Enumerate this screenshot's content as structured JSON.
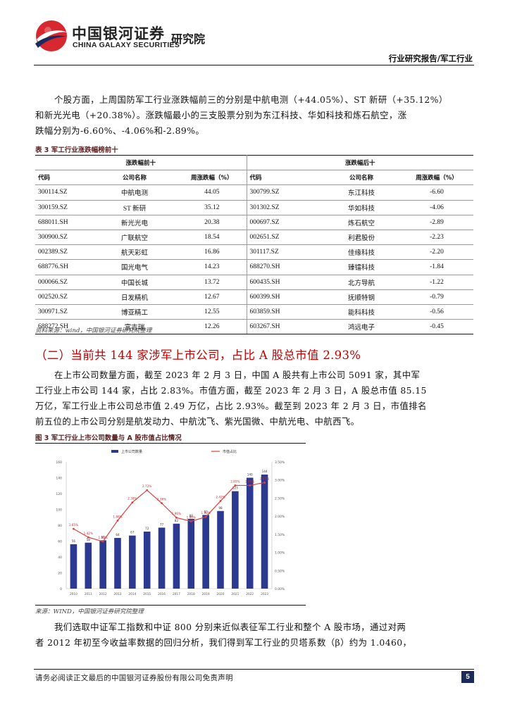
{
  "header": {
    "logo_cn": "中国银河证券",
    "logo_en": "CHINA GALAXY SECURITIES",
    "institute": "研究院",
    "report_type": "行业研究报告/军工行业",
    "colors": {
      "logo_red": "#d7282f",
      "logo_navy": "#1b2a5c"
    }
  },
  "para1": {
    "lines": [
      "个股方面，上周国防军工行业涨跌幅前三的分别是中航电测（+44.05%）、ST 新研（+35.12%）",
      "和新光光电（+20.38%）。涨跌幅最小的三支股票分别为东江科技、华如科技和炼石航空，涨",
      "跌幅分别为-6.60%、-4.06%和-2.89%。"
    ]
  },
  "table3": {
    "caption": "表 3  军工行业涨跌幅榜前十",
    "group_left": "涨跌幅前十",
    "group_right": "涨跌幅后十",
    "headers": [
      "代码",
      "公司名称",
      "周涨跌幅（%）",
      "代码",
      "公司名称",
      "周涨跌幅（%）"
    ],
    "rows": [
      [
        "300114.SZ",
        "中航电测",
        "44.05",
        "300799.SZ",
        "东江科技",
        "-6.60"
      ],
      [
        "300159.SZ",
        "ST 新研",
        "35.12",
        "301302.SZ",
        "华如科技",
        "-4.06"
      ],
      [
        "688011.SH",
        "新光光电",
        "20.38",
        "000697.SZ",
        "炼石航空",
        "-2.89"
      ],
      [
        "300900.SZ",
        "广联航空",
        "18.54",
        "002651.SZ",
        "利君股份",
        "-2.23"
      ],
      [
        "002389.SZ",
        "航天彩虹",
        "16.86",
        "301117.SZ",
        "佳缘科技",
        "-2.20"
      ],
      [
        "688776.SH",
        "国光电气",
        "14.23",
        "688270.SH",
        "臻镭科技",
        "-1.84"
      ],
      [
        "000066.SZ",
        "中国长城",
        "13.72",
        "600435.SH",
        "北方导航",
        "-1.22"
      ],
      [
        "002520.SZ",
        "日发精机",
        "12.67",
        "600399.SH",
        "抚顺特钢",
        "-0.79"
      ],
      [
        "300971.SZ",
        "博亚精工",
        "12.55",
        "603859.SH",
        "能科科技",
        "-0.56"
      ],
      [
        "688272.SH",
        "富吉瑞",
        "12.26",
        "603267.SH",
        "鸿远电子",
        "-0.45"
      ]
    ],
    "source": "资料来源：wind，中国银河证券研究院整理"
  },
  "section2": {
    "title": "（二）当前共 144 家涉军上市公司，占比 A 股总市值 2.93%",
    "lines": [
      "在上市公司数量方面，截至 2023 年 2 月 3 日，中国 A 股共有上市公司 5091 家，其中军",
      "工行业上市公司 144 家，占比 2.83%。市值方面，截至 2023 年 2 月 3 日，A 股总市值 85.15",
      "万亿，军工行业上市公司总市值 2.49 万亿，占比 2.93%。截至到 2023 年 2 月 3 日，市值排名",
      "前五位的上市公司分别是航发动力、中航沈飞、紫光国微、中航光电、中航西飞。"
    ]
  },
  "figure3": {
    "caption": "图 3  军工行业上市公司数量与 A 股市值占比情况",
    "source": "来源：WIND，中国银河证券研究院整理"
  },
  "chart_data": {
    "type": "bar",
    "categories": [
      "2010",
      "2011",
      "2012",
      "2013",
      "2014",
      "2015",
      "2016",
      "2017",
      "2018",
      "2019",
      "2020",
      "2021",
      "2022",
      "2023"
    ],
    "series": [
      {
        "name": "上市公司数量",
        "type": "bar",
        "axis": "left",
        "color": "#2b3990",
        "values": [
          56,
          58,
          61,
          64,
          67,
          72,
          77,
          82,
          88,
          93,
          98,
          123,
          140,
          144
        ]
      },
      {
        "name": "市值占比",
        "type": "line",
        "axis": "right",
        "color": "#e04040",
        "values": [
          1.65,
          1.42,
          1.3,
          1.88,
          2.38,
          2.72,
          2.36,
          1.96,
          1.86,
          1.98,
          2.42,
          2.85,
          2.85,
          2.93
        ]
      }
    ],
    "title": "",
    "ylim": [
      0,
      160
    ],
    "yticks": [
      0,
      20,
      40,
      60,
      80,
      100,
      120,
      140,
      160
    ],
    "y2lim": [
      0,
      3.5
    ],
    "y2ticks": [
      "0.00%",
      "0.50%",
      "1.00%",
      "1.50%",
      "2.00%",
      "2.50%",
      "3.00%",
      "3.50%"
    ],
    "legend": "top",
    "grid": false
  },
  "para3": {
    "lines": [
      "我们选取中证军工指数和中证 800 分别来近似表征军工行业和整个 A 股市场，通过对两",
      "者 2012 年初至今收益率数据的回归分析，我们得到军工行业的贝塔系数（β）约为 1.0460，"
    ]
  },
  "footer": {
    "disclaimer": "请务必阅读正文最后的中国银河证券股份有限公司免责声明",
    "page": "5"
  }
}
